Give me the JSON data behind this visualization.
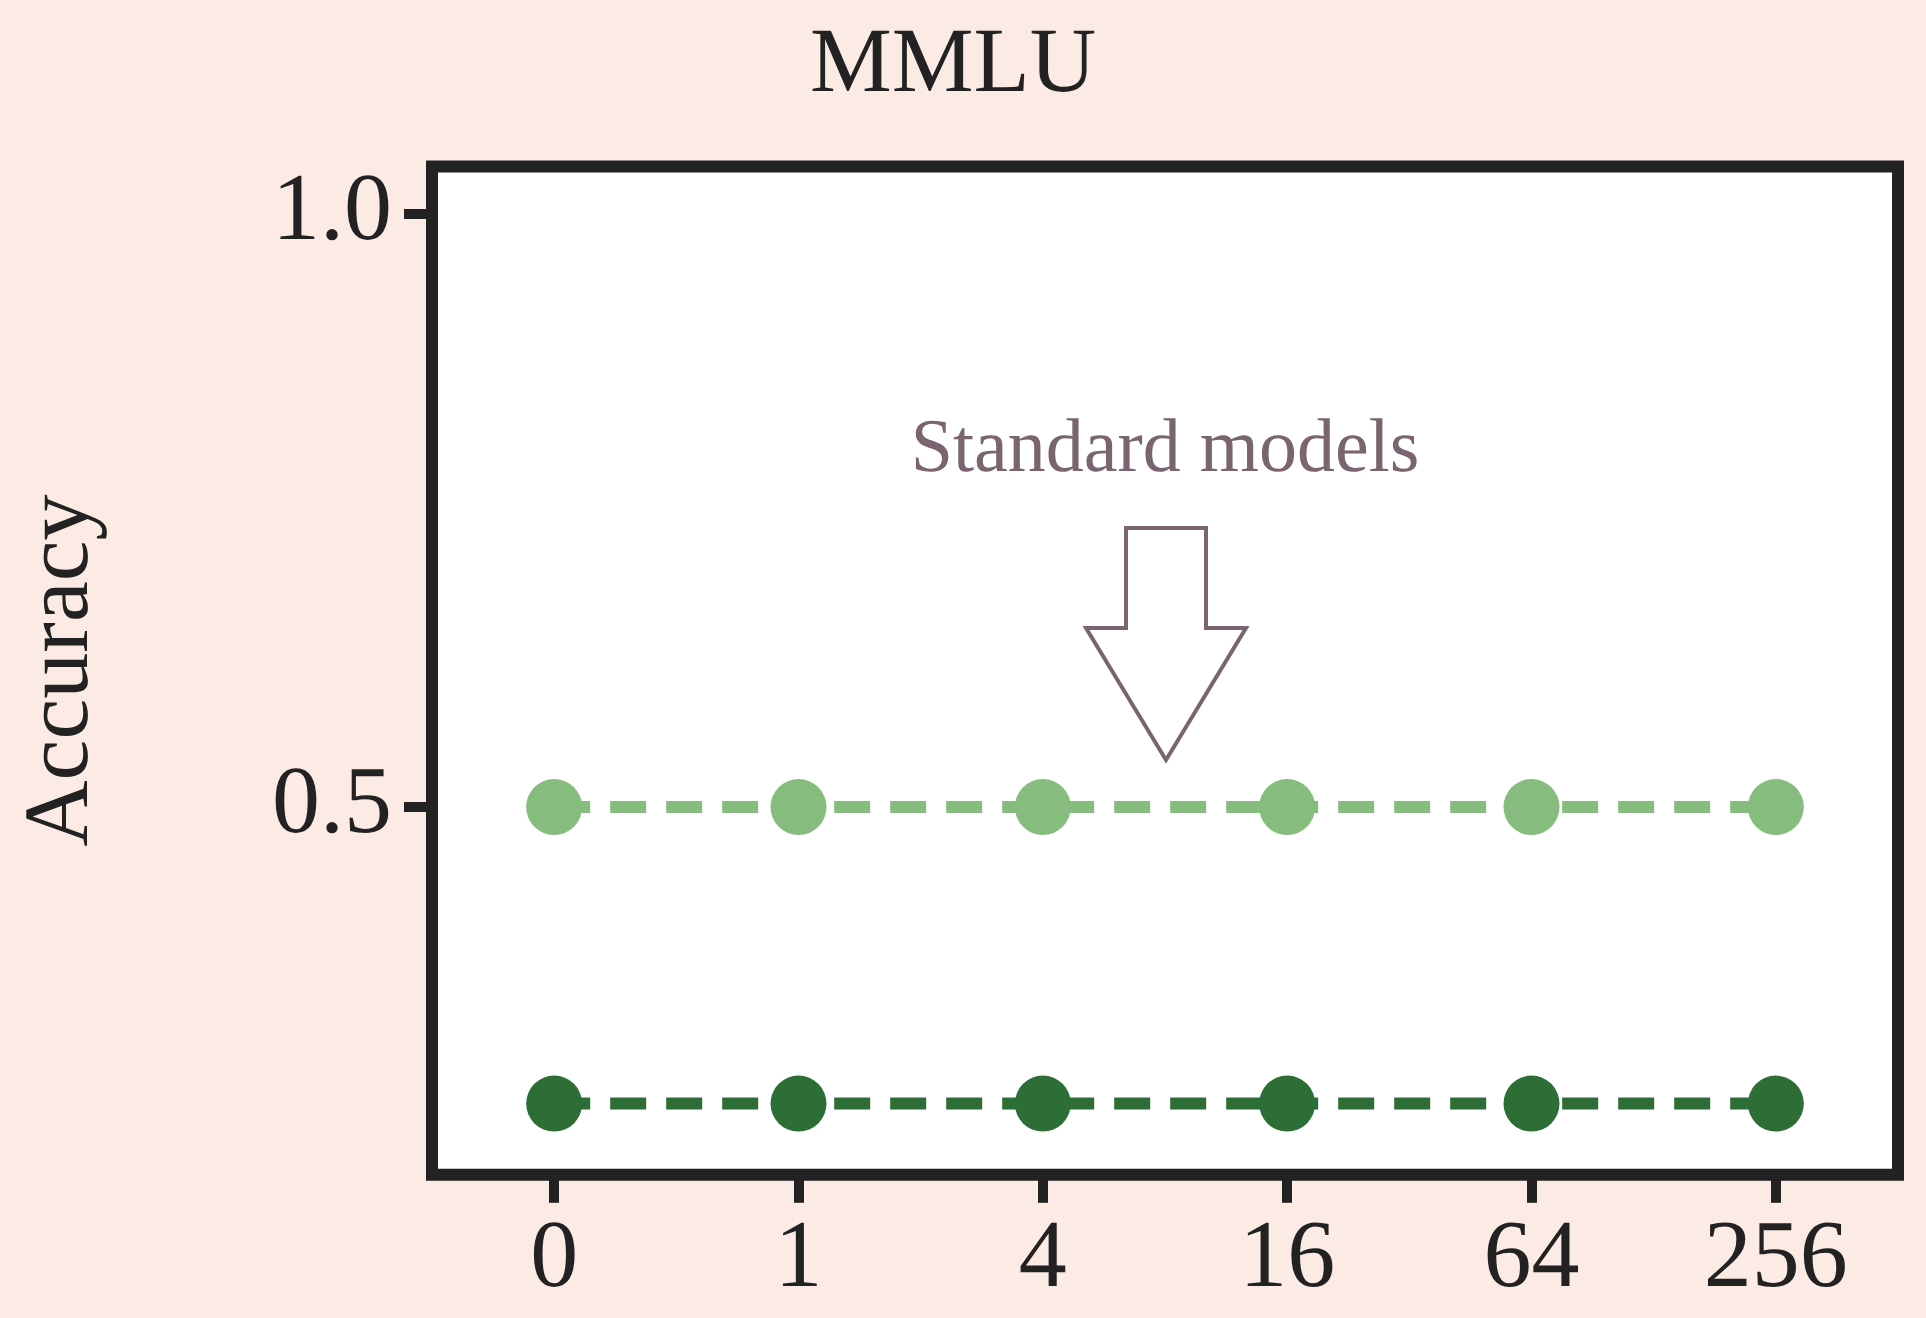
{
  "chart_data": {
    "type": "line",
    "title": "MMLU",
    "ylabel": "Accuracy",
    "categories": [
      "0",
      "1",
      "4",
      "16",
      "64",
      "256"
    ],
    "series": [
      {
        "color": "#86bc7e",
        "values": [
          0.5,
          0.5,
          0.5,
          0.5,
          0.5,
          0.5
        ]
      },
      {
        "color": "#2c6e36",
        "values": [
          0.25,
          0.25,
          0.25,
          0.25,
          0.25,
          0.25
        ]
      }
    ],
    "ylim": [
      0.19,
      1.04
    ],
    "yticks": [
      {
        "value": 0.5,
        "label": "0.5"
      },
      {
        "value": 1.0,
        "label": "1.0"
      }
    ],
    "annotations": [
      "Standard models"
    ],
    "grid": false,
    "legend": false,
    "marker": "circle",
    "line_style": "dashed"
  }
}
